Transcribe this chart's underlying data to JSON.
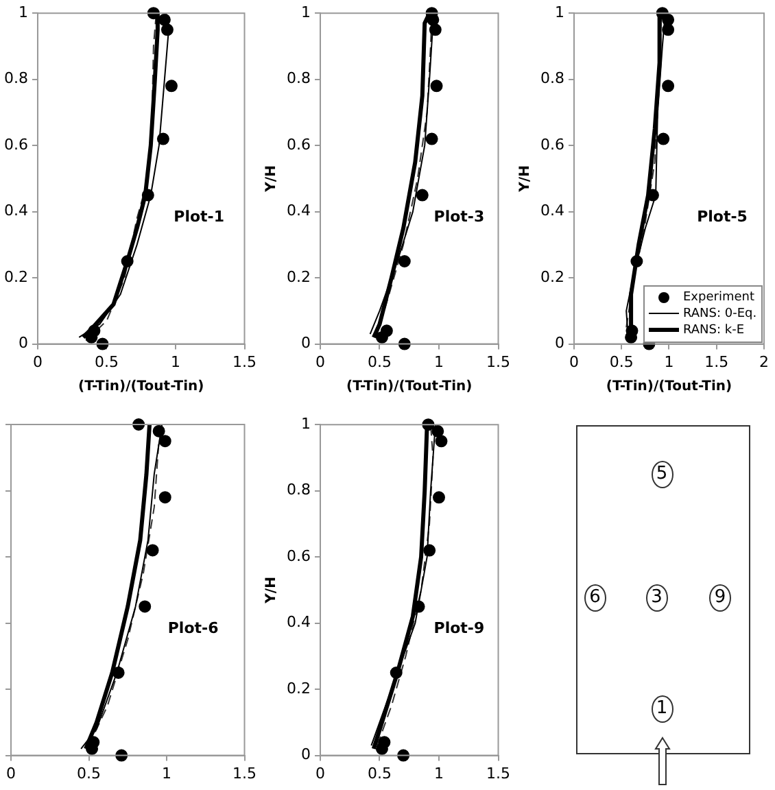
{
  "chart_data": [
    {
      "type": "line",
      "xlabel": "(T-Tin)/(Tout-Tin)",
      "xlim": [
        0,
        1.5
      ],
      "xticks": [
        0,
        0.5,
        1,
        1.5
      ],
      "ylim": [
        0,
        1
      ],
      "yticks": [
        0,
        0.2,
        0.4,
        0.6,
        0.8,
        1
      ],
      "grid": false,
      "legend": false,
      "annotations": [
        "Plot-1"
      ],
      "series": [
        {
          "type": "scatter",
          "marker": "circle",
          "color": "#000000",
          "x": [
            0.47,
            0.39,
            0.41,
            0.65,
            0.8,
            0.91,
            0.97,
            0.94,
            0.92,
            0.84
          ],
          "values": [
            0,
            0.02,
            0.04,
            0.25,
            0.45,
            0.62,
            0.78,
            0.95,
            0.98,
            1.0
          ]
        },
        {
          "type": "line",
          "marker": "none",
          "color": "#000000",
          "x": [
            0.3,
            0.45,
            0.6,
            0.72,
            0.82,
            0.88,
            0.92,
            0.95,
            0.93
          ],
          "values": [
            0.02,
            0.06,
            0.15,
            0.3,
            0.45,
            0.6,
            0.8,
            0.95,
            1.0
          ]
        },
        {
          "type": "line",
          "marker": "none",
          "color": "#000000",
          "x": [
            0.33,
            0.4,
            0.55,
            0.65,
            0.72,
            0.78,
            0.82,
            0.85,
            0.87,
            0.87
          ],
          "values": [
            0.02,
            0.05,
            0.12,
            0.25,
            0.35,
            0.45,
            0.6,
            0.8,
            0.95,
            1.0
          ]
        },
        {
          "type": "line",
          "marker": "none",
          "line_style": "dashed",
          "color": "#333333",
          "x": [
            0.35,
            0.5,
            0.63,
            0.72,
            0.8,
            0.83,
            0.84,
            0.86
          ],
          "values": [
            0.01,
            0.07,
            0.2,
            0.38,
            0.5,
            0.7,
            0.9,
            1.0
          ]
        }
      ]
    },
    {
      "type": "line",
      "xlabel": "(T-Tin)/(Tout-Tin)",
      "ylabel": "Y/H",
      "xlim": [
        0,
        1.5
      ],
      "xticks": [
        0,
        0.5,
        1,
        1.5
      ],
      "ylim": [
        0,
        1
      ],
      "yticks": [
        0,
        0.2,
        0.4,
        0.6,
        0.8,
        1
      ],
      "grid": false,
      "legend": false,
      "annotations": [
        "Plot-3"
      ],
      "series": [
        {
          "type": "scatter",
          "marker": "circle",
          "color": "#000000",
          "x": [
            0.71,
            0.52,
            0.56,
            0.71,
            0.86,
            0.94,
            0.98,
            0.97,
            0.95,
            0.94
          ],
          "values": [
            0,
            0.02,
            0.04,
            0.25,
            0.45,
            0.62,
            0.78,
            0.95,
            0.98,
            1.0
          ]
        },
        {
          "type": "line",
          "marker": "none",
          "color": "#000000",
          "x": [
            0.42,
            0.5,
            0.65,
            0.78,
            0.88,
            0.92,
            0.95,
            0.98
          ],
          "values": [
            0.03,
            0.1,
            0.25,
            0.4,
            0.6,
            0.8,
            0.97,
            1.0
          ]
        },
        {
          "type": "line",
          "marker": "none",
          "color": "#000000",
          "x": [
            0.45,
            0.5,
            0.6,
            0.7,
            0.8,
            0.86,
            0.88,
            0.92
          ],
          "values": [
            0.02,
            0.06,
            0.2,
            0.35,
            0.55,
            0.75,
            0.97,
            1.0
          ]
        },
        {
          "type": "line",
          "marker": "none",
          "line_style": "dashed",
          "color": "#333333",
          "x": [
            0.47,
            0.58,
            0.7,
            0.82,
            0.9,
            0.93,
            0.94
          ],
          "values": [
            0.02,
            0.15,
            0.3,
            0.5,
            0.7,
            0.9,
            1.0
          ]
        }
      ]
    },
    {
      "type": "line",
      "xlabel": "(T-Tin)/(Tout-Tin)",
      "ylabel": "Y/H",
      "xlim": [
        0,
        2
      ],
      "xticks": [
        0,
        0.5,
        1,
        1.5,
        2
      ],
      "ylim": [
        0,
        1
      ],
      "yticks": [
        0,
        0.2,
        0.4,
        0.6,
        0.8,
        1
      ],
      "grid": false,
      "legend": "bottom right",
      "annotations": [
        "Plot-5"
      ],
      "series": [
        {
          "name": "Experiment",
          "type": "scatter",
          "marker": "circle",
          "color": "#000000",
          "x": [
            0.79,
            0.6,
            0.61,
            0.66,
            0.83,
            0.94,
            0.99,
            0.99,
            0.99,
            0.93
          ],
          "values": [
            0,
            0.02,
            0.04,
            0.25,
            0.45,
            0.62,
            0.78,
            0.95,
            0.98,
            1.0
          ]
        },
        {
          "name": "RANS: 0-Eq.",
          "type": "line",
          "marker": "none",
          "color": "#000000",
          "x": [
            0.57,
            0.55,
            0.62,
            0.75,
            0.86,
            0.88,
            0.93,
            0.96
          ],
          "values": [
            0.02,
            0.1,
            0.2,
            0.35,
            0.45,
            0.7,
            0.9,
            1.0
          ]
        },
        {
          "name": "RANS: k-E",
          "type": "line",
          "marker": "none",
          "color": "#000000",
          "x": [
            0.6,
            0.6,
            0.68,
            0.78,
            0.85,
            0.9,
            0.9
          ],
          "values": [
            0.02,
            0.15,
            0.3,
            0.45,
            0.65,
            0.85,
            1.0
          ]
        },
        {
          "type": "line",
          "marker": "none",
          "line_style": "dashed",
          "color": "#333333",
          "x": [
            0.55,
            0.62,
            0.74,
            0.85,
            0.9,
            0.92
          ],
          "values": [
            0.05,
            0.18,
            0.35,
            0.55,
            0.8,
            1.0
          ]
        }
      ]
    },
    {
      "type": "line",
      "xlim": [
        0,
        1.5
      ],
      "xticks": [
        0,
        0.5,
        1,
        1.5
      ],
      "ylim": [
        0,
        1
      ],
      "yticks": [
        0,
        0.2,
        0.4,
        0.6,
        0.8,
        1
      ],
      "tick_labels": "x",
      "grid": false,
      "legend": false,
      "annotations": [
        "Plot-6"
      ],
      "series": [
        {
          "type": "scatter",
          "marker": "circle",
          "color": "#000000",
          "x": [
            0.71,
            0.52,
            0.53,
            0.69,
            0.86,
            0.91,
            0.99,
            0.99,
            0.95,
            0.82
          ],
          "values": [
            0,
            0.02,
            0.04,
            0.25,
            0.45,
            0.62,
            0.78,
            0.95,
            0.98,
            1.0
          ]
        },
        {
          "type": "line",
          "marker": "none",
          "color": "#000000",
          "x": [
            0.45,
            0.55,
            0.68,
            0.8,
            0.88,
            0.92,
            0.97
          ],
          "values": [
            0.02,
            0.08,
            0.25,
            0.45,
            0.65,
            0.85,
            1.0
          ]
        },
        {
          "type": "line",
          "marker": "none",
          "color": "#000000",
          "x": [
            0.48,
            0.55,
            0.65,
            0.75,
            0.83,
            0.87,
            0.89
          ],
          "values": [
            0.02,
            0.1,
            0.25,
            0.45,
            0.65,
            0.85,
            1.0
          ]
        },
        {
          "type": "line",
          "marker": "none",
          "line_style": "dashed",
          "color": "#333333",
          "x": [
            0.5,
            0.62,
            0.75,
            0.85,
            0.92,
            0.95
          ],
          "values": [
            0.03,
            0.15,
            0.35,
            0.55,
            0.75,
            0.95
          ]
        }
      ]
    },
    {
      "type": "line",
      "ylabel": "Y/H",
      "xlim": [
        0,
        1.5
      ],
      "xticks": [
        0,
        0.5,
        1,
        1.5
      ],
      "ylim": [
        0,
        1
      ],
      "yticks": [
        0,
        0.2,
        0.4,
        0.6,
        0.8,
        1
      ],
      "grid": false,
      "legend": false,
      "annotations": [
        "Plot-9"
      ],
      "series": [
        {
          "type": "scatter",
          "marker": "circle",
          "color": "#000000",
          "x": [
            0.7,
            0.52,
            0.54,
            0.64,
            0.83,
            0.92,
            1.0,
            1.02,
            0.99,
            0.91
          ],
          "values": [
            0,
            0.02,
            0.04,
            0.25,
            0.45,
            0.62,
            0.78,
            0.95,
            0.98,
            1.0
          ]
        },
        {
          "type": "line",
          "marker": "none",
          "color": "#000000",
          "x": [
            0.43,
            0.5,
            0.65,
            0.8,
            0.9,
            0.93,
            0.97
          ],
          "values": [
            0.03,
            0.1,
            0.25,
            0.4,
            0.6,
            0.8,
            1.0
          ]
        },
        {
          "type": "line",
          "marker": "none",
          "color": "#000000",
          "x": [
            0.45,
            0.52,
            0.65,
            0.78,
            0.85,
            0.88,
            0.9
          ],
          "values": [
            0.02,
            0.1,
            0.25,
            0.42,
            0.6,
            0.8,
            1.0
          ]
        },
        {
          "type": "line",
          "marker": "none",
          "line_style": "dashed",
          "color": "#333333",
          "x": [
            0.48,
            0.6,
            0.72,
            0.85,
            0.92,
            0.95,
            0.93
          ],
          "values": [
            0.03,
            0.15,
            0.3,
            0.5,
            0.7,
            0.9,
            1.0
          ]
        }
      ]
    },
    {
      "type": "other",
      "annotations": [
        "5",
        "6",
        "3",
        "9",
        "1"
      ]
    }
  ]
}
